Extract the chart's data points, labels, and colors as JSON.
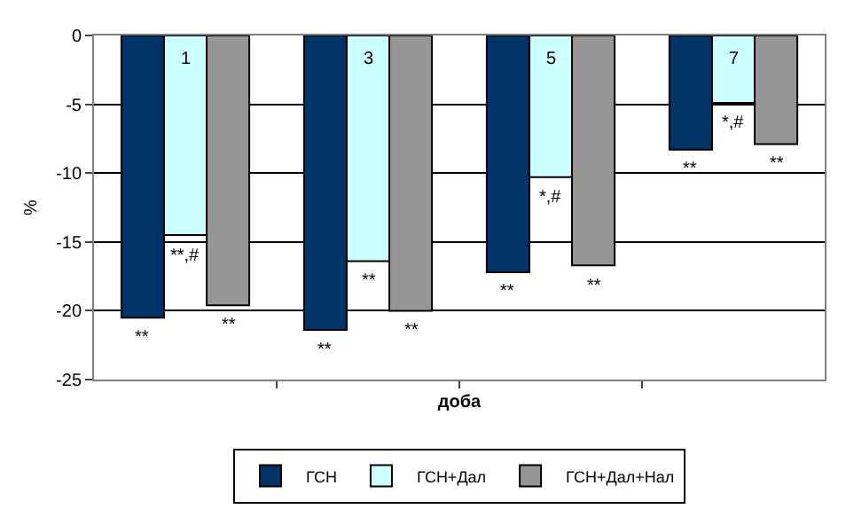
{
  "chart_data": {
    "type": "bar",
    "xlabel": "доба",
    "ylabel": "%",
    "categories": [
      "1",
      "3",
      "5",
      "7"
    ],
    "series": [
      {
        "name": "ГСН",
        "color": "#003366",
        "values": [
          -20.5,
          -21.4,
          -17.2,
          -8.3
        ]
      },
      {
        "name": "ГСН+Дал",
        "color": "#ccffff",
        "values": [
          -14.5,
          -16.4,
          -10.3,
          -4.9
        ]
      },
      {
        "name": "ГСН+Дал+Нал",
        "color": "#969696",
        "values": [
          -19.6,
          -20.0,
          -16.7,
          -7.9
        ]
      }
    ],
    "annotations": [
      "**",
      "**,#",
      "**",
      "**",
      "**",
      "**",
      "**",
      "*,#",
      "**",
      "**",
      "*,#",
      "**"
    ],
    "ylim": [
      -25,
      0
    ],
    "yticks": [
      -25,
      -20,
      -15,
      -10,
      -5,
      0
    ],
    "grid": "y",
    "legend": "bottom"
  }
}
